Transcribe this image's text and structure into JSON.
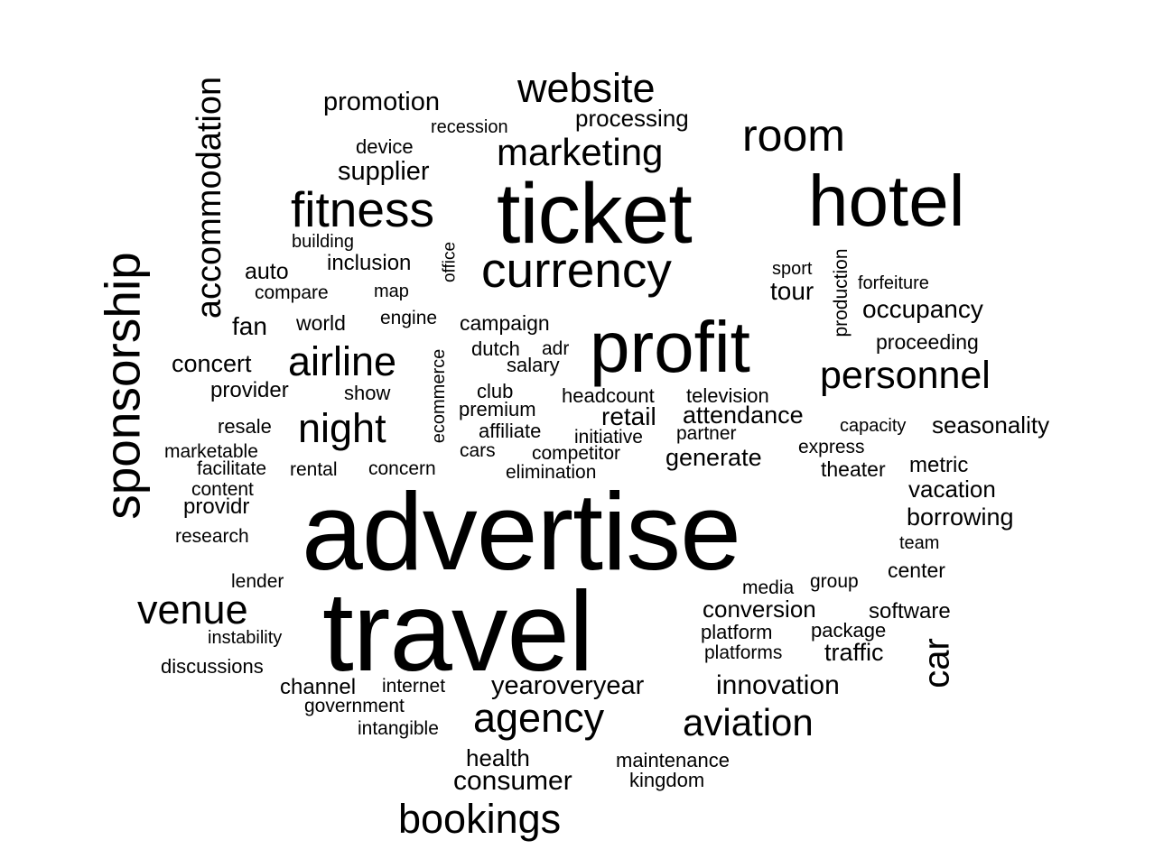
{
  "words": {
    "advertise": "advertise",
    "travel": "travel",
    "ticket": "ticket",
    "hotel": "hotel",
    "profit": "profit",
    "currency": "currency",
    "sponsorship": "sponsorship",
    "fitness": "fitness",
    "room": "room",
    "website": "website",
    "marketing": "marketing",
    "accommodation": "accommodation",
    "personnel": "personnel",
    "airline": "airline",
    "night": "night",
    "venue": "venue",
    "agency": "agency",
    "aviation": "aviation",
    "bookings": "bookings",
    "car": "car",
    "promotion": "promotion",
    "recession": "recession",
    "processing": "processing",
    "device": "device",
    "supplier": "supplier",
    "building": "building",
    "office": "office",
    "inclusion": "inclusion",
    "auto": "auto",
    "compare": "compare",
    "map": "map",
    "sport": "sport",
    "tour": "tour",
    "production": "production",
    "forfeiture": "forfeiture",
    "occupancy": "occupancy",
    "proceeding": "proceeding",
    "fan": "fan",
    "world": "world",
    "engine": "engine",
    "campaign": "campaign",
    "dutch": "dutch",
    "adr": "adr",
    "salary": "salary",
    "concert": "concert",
    "ecommerce": "ecommerce",
    "provider": "provider",
    "show": "show",
    "club": "club",
    "headcount": "headcount",
    "television": "television",
    "premium": "premium",
    "retail": "retail",
    "attendance": "attendance",
    "resale": "resale",
    "affiliate": "affiliate",
    "initiative": "initiative",
    "partner": "partner",
    "capacity": "capacity",
    "seasonality": "seasonality",
    "marketable": "marketable",
    "cars": "cars",
    "competitor": "competitor",
    "generate": "generate",
    "express": "express",
    "facilitate": "facilitate",
    "rental": "rental",
    "concern": "concern",
    "elimination": "elimination",
    "theater": "theater",
    "metric": "metric",
    "content": "content",
    "vacation": "vacation",
    "providr": "providr",
    "borrowing": "borrowing",
    "research": "research",
    "team": "team",
    "lender": "lender",
    "center": "center",
    "media": "media",
    "group": "group",
    "conversion": "conversion",
    "software": "software",
    "instability": "instability",
    "platform": "platform",
    "package": "package",
    "platforms": "platforms",
    "traffic": "traffic",
    "discussions": "discussions",
    "channel": "channel",
    "internet": "internet",
    "yearoveryear": "yearoveryear",
    "innovation": "innovation",
    "government": "government",
    "intangible": "intangible",
    "health": "health",
    "maintenance": "maintenance",
    "consumer": "consumer",
    "kingdom": "kingdom"
  }
}
